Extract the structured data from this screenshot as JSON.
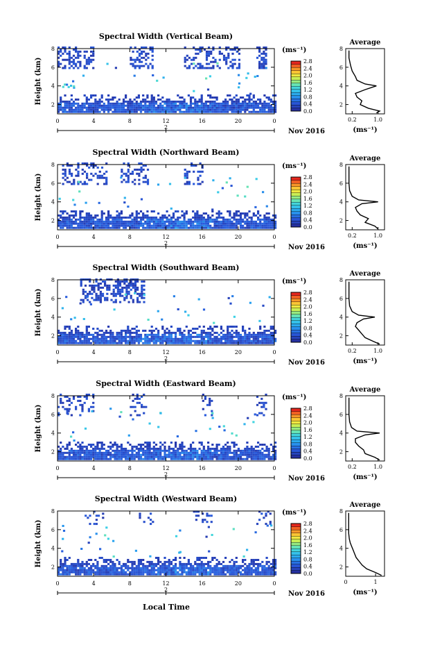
{
  "chart_data": [
    {
      "type": "heatmap",
      "title": "Spectral Width (Vertical Beam)",
      "ylabel": "Height (km)",
      "ylim": [
        1,
        8
      ],
      "yticks": [
        2,
        4,
        6,
        8
      ],
      "xlim": [
        0,
        24
      ],
      "xticks": [
        "0",
        "4",
        "8",
        "12",
        "16",
        "20",
        "0"
      ],
      "date_tick": "2",
      "date_label": "Nov 2016",
      "colorbar_unit": "(ms⁻¹)",
      "colorbar_ticks": [
        "0.0",
        "0.4",
        "0.8",
        "1.2",
        "1.6",
        "2.0",
        "2.4",
        "2.8"
      ],
      "vmin": 0,
      "vmax": 3,
      "seed": 11,
      "lower": [
        1.1,
        3.0
      ],
      "upper_density": 0.45,
      "upper_hours": [
        [
          0,
          4
        ],
        [
          8,
          10.5
        ],
        [
          14,
          20
        ],
        [
          22,
          23
        ]
      ],
      "upper_range": [
        5.8,
        8
      ],
      "average": {
        "title": "Average",
        "xlabel": "(ms⁻¹)",
        "xticks": [
          "0.2",
          "1.0"
        ],
        "xlim": [
          0,
          1.2
        ],
        "ylim": [
          1,
          8
        ],
        "yticks": [
          2,
          4,
          6,
          8
        ],
        "profile": [
          [
            1.1,
            0.95
          ],
          [
            1.3,
            1.05
          ],
          [
            1.6,
            0.7
          ],
          [
            2.0,
            0.45
          ],
          [
            2.4,
            0.5
          ],
          [
            2.8,
            0.35
          ],
          [
            3.2,
            0.3
          ],
          [
            3.6,
            0.6
          ],
          [
            4.0,
            0.95
          ],
          [
            4.2,
            0.6
          ],
          [
            4.6,
            0.35
          ],
          [
            5.0,
            0.3
          ],
          [
            5.6,
            0.2
          ],
          [
            6.2,
            0.15
          ],
          [
            7.0,
            0.1
          ],
          [
            7.8,
            0.1
          ]
        ]
      }
    },
    {
      "type": "heatmap",
      "title": "Spectral Width (Northward Beam)",
      "ylabel": "Height (km)",
      "ylim": [
        1,
        8
      ],
      "yticks": [
        2,
        4,
        6,
        8
      ],
      "xlim": [
        0,
        24
      ],
      "xticks": [
        "0",
        "4",
        "8",
        "12",
        "16",
        "20",
        "0"
      ],
      "date_tick": "2",
      "date_label": "Nov 2016",
      "colorbar_unit": "(ms⁻¹)",
      "colorbar_ticks": [
        "0.0",
        "0.4",
        "0.8",
        "1.2",
        "1.6",
        "2.0",
        "2.4",
        "2.8"
      ],
      "vmin": 0,
      "vmax": 3,
      "seed": 23,
      "lower": [
        1.1,
        3.0
      ],
      "upper_density": 0.35,
      "upper_hours": [
        [
          0.5,
          5.5
        ],
        [
          7,
          10
        ],
        [
          14,
          16
        ]
      ],
      "upper_range": [
        5.8,
        8
      ],
      "average": {
        "title": "Average",
        "xlabel": "(ms⁻¹)",
        "xticks": [
          "0.2",
          "1.0"
        ],
        "xlim": [
          0,
          1.2
        ],
        "ylim": [
          1,
          8
        ],
        "yticks": [
          2,
          4,
          6,
          8
        ],
        "profile": [
          [
            1.1,
            1.0
          ],
          [
            1.4,
            0.9
          ],
          [
            1.8,
            0.6
          ],
          [
            2.2,
            0.7
          ],
          [
            2.6,
            0.45
          ],
          [
            3.0,
            0.35
          ],
          [
            3.4,
            0.3
          ],
          [
            3.8,
            0.5
          ],
          [
            4.0,
            1.0
          ],
          [
            4.2,
            0.4
          ],
          [
            4.6,
            0.2
          ],
          [
            5.2,
            0.12
          ],
          [
            6.0,
            0.1
          ],
          [
            7.0,
            0.1
          ],
          [
            7.8,
            0.1
          ]
        ]
      }
    },
    {
      "type": "heatmap",
      "title": "Spectral Width (Southward Beam)",
      "ylabel": "Height (km)",
      "ylim": [
        1,
        8
      ],
      "yticks": [
        2,
        4,
        6,
        8
      ],
      "xlim": [
        0,
        24
      ],
      "xticks": [
        "0",
        "4",
        "8",
        "12",
        "16",
        "20",
        "0"
      ],
      "date_tick": "2",
      "date_label": "Nov 2016",
      "colorbar_unit": "(ms⁻¹)",
      "colorbar_ticks": [
        "0.0",
        "0.4",
        "0.8",
        "1.2",
        "1.6",
        "2.0",
        "2.4",
        "2.8"
      ],
      "vmin": 0,
      "vmax": 3,
      "seed": 37,
      "lower": [
        1.1,
        3.0
      ],
      "upper_density": 0.5,
      "upper_hours": [
        [
          2.5,
          9.5
        ]
      ],
      "upper_range": [
        5.5,
        8
      ],
      "average": {
        "title": "Average",
        "xlabel": "(ms⁻¹)",
        "xticks": [
          "0.2",
          "1.0"
        ],
        "xlim": [
          0,
          1.2
        ],
        "ylim": [
          1,
          8
        ],
        "yticks": [
          2,
          4,
          6,
          8
        ],
        "profile": [
          [
            1.1,
            1.05
          ],
          [
            1.4,
            0.85
          ],
          [
            1.8,
            0.6
          ],
          [
            2.2,
            0.5
          ],
          [
            2.6,
            0.4
          ],
          [
            3.0,
            0.3
          ],
          [
            3.4,
            0.35
          ],
          [
            3.8,
            0.55
          ],
          [
            4.0,
            0.9
          ],
          [
            4.2,
            0.4
          ],
          [
            4.6,
            0.2
          ],
          [
            5.2,
            0.12
          ],
          [
            6.0,
            0.1
          ],
          [
            7.0,
            0.1
          ],
          [
            7.8,
            0.1
          ]
        ]
      }
    },
    {
      "type": "heatmap",
      "title": "Spectral Width (Eastward Beam)",
      "ylabel": "Height (km)",
      "ylim": [
        1,
        8
      ],
      "yticks": [
        2,
        4,
        6,
        8
      ],
      "xlim": [
        0,
        24
      ],
      "xticks": [
        "0",
        "4",
        "8",
        "12",
        "16",
        "20",
        "0"
      ],
      "date_tick": "2",
      "date_label": "Nov 2016",
      "colorbar_unit": "(ms⁻¹)",
      "colorbar_ticks": [
        "0.0",
        "0.4",
        "0.8",
        "1.2",
        "1.6",
        "2.0",
        "2.4",
        "2.8"
      ],
      "vmin": 0,
      "vmax": 3,
      "seed": 51,
      "lower": [
        1.1,
        3.0
      ],
      "upper_density": 0.25,
      "upper_hours": [
        [
          0,
          4
        ],
        [
          8,
          10
        ],
        [
          16,
          17
        ],
        [
          22,
          23
        ]
      ],
      "upper_range": [
        5.8,
        8
      ],
      "average": {
        "title": "Average",
        "xlabel": "(ms⁻¹)",
        "xticks": [
          "0.2",
          "1.0"
        ],
        "xlim": [
          0,
          1.2
        ],
        "ylim": [
          1,
          8
        ],
        "yticks": [
          2,
          4,
          6,
          8
        ],
        "profile": [
          [
            1.1,
            1.05
          ],
          [
            1.4,
            0.9
          ],
          [
            1.8,
            0.6
          ],
          [
            2.2,
            0.55
          ],
          [
            2.6,
            0.4
          ],
          [
            3.0,
            0.3
          ],
          [
            3.4,
            0.3
          ],
          [
            3.8,
            0.6
          ],
          [
            4.0,
            1.05
          ],
          [
            4.2,
            0.35
          ],
          [
            4.6,
            0.18
          ],
          [
            5.2,
            0.12
          ],
          [
            6.0,
            0.1
          ],
          [
            7.0,
            0.1
          ],
          [
            7.8,
            0.1
          ]
        ]
      }
    },
    {
      "type": "heatmap",
      "title": "Spectral Width (Westward Beam)",
      "ylabel": "Height (km)",
      "ylim": [
        1,
        8
      ],
      "yticks": [
        2,
        4,
        6,
        8
      ],
      "xlim": [
        0,
        24
      ],
      "xticks": [
        "0",
        "4",
        "8",
        "12",
        "16",
        "20",
        "0"
      ],
      "date_tick": "2",
      "date_label": "Nov 2016",
      "colorbar_unit": "(ms⁻¹)",
      "colorbar_ticks": [
        "0.0",
        "0.4",
        "0.8",
        "1.2",
        "1.6",
        "2.0",
        "2.4",
        "2.8"
      ],
      "vmin": 0,
      "vmax": 3,
      "seed": 67,
      "lower": [
        1.1,
        3.0
      ],
      "upper_density": 0.2,
      "upper_hours": [
        [
          3,
          5
        ],
        [
          9,
          10.5
        ],
        [
          15,
          17
        ],
        [
          22,
          23.5
        ]
      ],
      "upper_range": [
        6.5,
        8
      ],
      "average": {
        "title": "Average",
        "xlabel": "(ms⁻¹)",
        "xticks": [
          "0",
          "1"
        ],
        "xlim": [
          0,
          1.3
        ],
        "ylim": [
          1,
          8
        ],
        "yticks": [
          2,
          4,
          6,
          8
        ],
        "profile": [
          [
            1.1,
            1.2
          ],
          [
            1.4,
            1.0
          ],
          [
            1.8,
            0.7
          ],
          [
            2.2,
            0.55
          ],
          [
            2.6,
            0.45
          ],
          [
            3.0,
            0.35
          ],
          [
            3.4,
            0.3
          ],
          [
            3.8,
            0.25
          ],
          [
            4.2,
            0.2
          ],
          [
            4.6,
            0.15
          ],
          [
            5.0,
            0.12
          ],
          [
            5.6,
            0.1
          ],
          [
            6.2,
            0.1
          ],
          [
            7.0,
            0.1
          ],
          [
            7.8,
            0.1
          ]
        ]
      }
    }
  ],
  "xlabel": "Local Time"
}
